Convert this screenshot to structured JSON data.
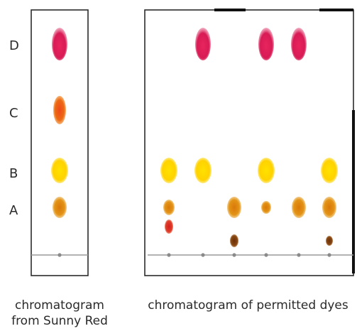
{
  "row_labels": [
    "D",
    "C",
    "B",
    "A"
  ],
  "captions": {
    "left_line1": "chromatogram",
    "left_line2": "from Sunny Red",
    "right": "chromatogram of permitted dyes"
  },
  "colors": {
    "frame": "#2b2b2b",
    "baseline": "#9a9a9a",
    "origin_dot": "#8a8a8a",
    "magenta": "#d81b55",
    "red_orange": "#ec5a12",
    "yellow": "#ffd200",
    "orange": "#df8a12",
    "red": "#d7271e",
    "brown": "#7c3a0c"
  },
  "spot_colors": {
    "D": "magenta",
    "C": "red_orange",
    "B": "yellow",
    "A": "orange"
  },
  "sunny_red_spots": [
    "D",
    "C",
    "B",
    "A"
  ],
  "permitted_dye_lanes": [
    {
      "spots": [
        "B",
        "A",
        "red"
      ]
    },
    {
      "spots": [
        "D",
        "B"
      ]
    },
    {
      "spots": [
        "A",
        "brown"
      ]
    },
    {
      "spots": [
        "D",
        "B",
        "A"
      ]
    },
    {
      "spots": [
        "D",
        "A"
      ]
    },
    {
      "spots": [
        "B",
        "A",
        "brown"
      ]
    }
  ]
}
